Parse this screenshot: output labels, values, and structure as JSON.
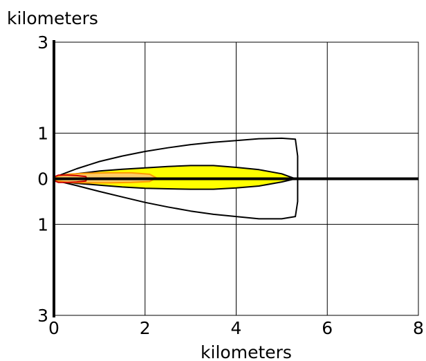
{
  "chart_data": {
    "type": "area",
    "title": "",
    "xlabel": "kilometers",
    "ylabel": "kilometers",
    "xlim": [
      0,
      8
    ],
    "ylim": [
      -3,
      3
    ],
    "x_ticks": [
      {
        "value": 0,
        "label": "0"
      },
      {
        "value": 2,
        "label": "2"
      },
      {
        "value": 4,
        "label": "4"
      },
      {
        "value": 6,
        "label": "6"
      },
      {
        "value": 8,
        "label": "8"
      }
    ],
    "y_ticks": [
      {
        "value": 3,
        "label": "3"
      },
      {
        "value": 1,
        "label": "1"
      },
      {
        "value": 0,
        "label": "0"
      },
      {
        "value": -1,
        "label": "1"
      },
      {
        "value": -3,
        "label": "3"
      }
    ],
    "grid": true,
    "series": [
      {
        "color": "#000000",
        "fill": "none",
        "outline": [
          [
            0.0,
            0.03
          ],
          [
            0.5,
            0.22
          ],
          [
            1.0,
            0.38
          ],
          [
            1.5,
            0.5
          ],
          [
            2.0,
            0.6
          ],
          [
            2.5,
            0.68
          ],
          [
            3.0,
            0.75
          ],
          [
            3.5,
            0.8
          ],
          [
            4.0,
            0.84
          ],
          [
            4.5,
            0.88
          ],
          [
            5.0,
            0.89
          ],
          [
            5.3,
            0.87
          ],
          [
            5.35,
            0.5
          ],
          [
            5.35,
            0.0
          ],
          [
            5.35,
            -0.5
          ],
          [
            5.3,
            -0.83
          ],
          [
            5.0,
            -0.88
          ],
          [
            4.5,
            -0.88
          ],
          [
            4.0,
            -0.83
          ],
          [
            3.5,
            -0.78
          ],
          [
            3.0,
            -0.71
          ],
          [
            2.5,
            -0.62
          ],
          [
            2.0,
            -0.52
          ],
          [
            1.5,
            -0.4
          ],
          [
            1.0,
            -0.28
          ],
          [
            0.5,
            -0.15
          ],
          [
            0.0,
            -0.03
          ]
        ]
      },
      {
        "color": "#000000",
        "fill": "#ffff00",
        "outline": [
          [
            0.0,
            0.04
          ],
          [
            0.5,
            0.11
          ],
          [
            1.0,
            0.17
          ],
          [
            1.5,
            0.21
          ],
          [
            2.0,
            0.24
          ],
          [
            2.5,
            0.27
          ],
          [
            3.0,
            0.29
          ],
          [
            3.5,
            0.29
          ],
          [
            4.0,
            0.25
          ],
          [
            4.5,
            0.2
          ],
          [
            5.0,
            0.11
          ],
          [
            5.3,
            0.0
          ],
          [
            5.0,
            -0.07
          ],
          [
            4.5,
            -0.16
          ],
          [
            4.0,
            -0.2
          ],
          [
            3.5,
            -0.23
          ],
          [
            3.0,
            -0.23
          ],
          [
            2.5,
            -0.22
          ],
          [
            2.0,
            -0.21
          ],
          [
            1.5,
            -0.18
          ],
          [
            1.0,
            -0.14
          ],
          [
            0.5,
            -0.1
          ],
          [
            0.0,
            -0.04
          ]
        ]
      },
      {
        "color": "#ff9900",
        "fill": "#ffcc66",
        "outline": [
          [
            0.0,
            0.04
          ],
          [
            0.3,
            0.1
          ],
          [
            0.7,
            0.12
          ],
          [
            1.2,
            0.13
          ],
          [
            1.7,
            0.13
          ],
          [
            2.1,
            0.1
          ],
          [
            2.25,
            0.02
          ],
          [
            2.1,
            -0.06
          ],
          [
            1.7,
            -0.08
          ],
          [
            1.2,
            -0.09
          ],
          [
            0.7,
            -0.09
          ],
          [
            0.3,
            -0.08
          ],
          [
            0.0,
            -0.04
          ]
        ]
      },
      {
        "color": "#cc0000",
        "fill": "none",
        "outline": [
          [
            0.0,
            0.04
          ],
          [
            0.1,
            0.08
          ],
          [
            0.3,
            0.08
          ],
          [
            0.5,
            0.07
          ],
          [
            0.7,
            0.05
          ],
          [
            0.72,
            0.0
          ],
          [
            0.7,
            -0.05
          ],
          [
            0.5,
            -0.07
          ],
          [
            0.3,
            -0.08
          ],
          [
            0.1,
            -0.08
          ],
          [
            0.0,
            -0.04
          ]
        ]
      }
    ]
  }
}
